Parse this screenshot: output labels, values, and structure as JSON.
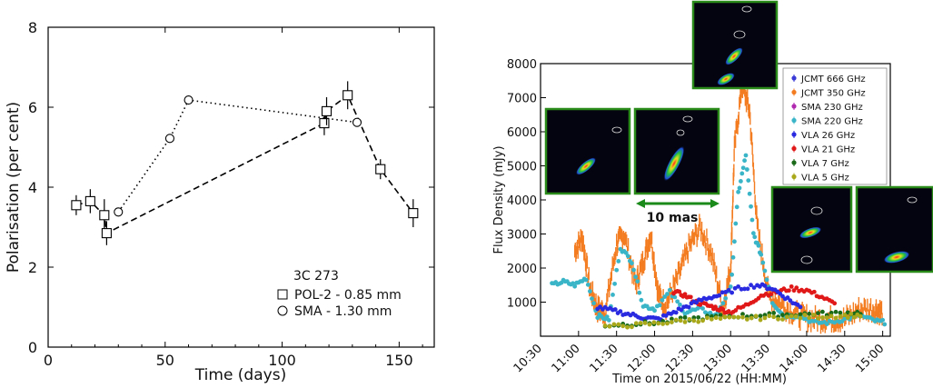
{
  "chart_data": [
    {
      "type": "scatter",
      "xlabel": "Time (days)",
      "ylabel": "Polarisation (per cent)",
      "xlim": [
        0,
        165
      ],
      "ylim": [
        0,
        8
      ],
      "x_ticks": [
        "0",
        "50",
        "100",
        "150"
      ],
      "y_ticks": [
        "0",
        "2",
        "4",
        "6",
        "8"
      ],
      "legend": {
        "title": "3C 273",
        "placement": "bottom-right",
        "entries": [
          "POL-2 - 0.85 mm",
          "SMA  - 1.30 mm"
        ]
      },
      "series": [
        {
          "name": "POL-2 - 0.85 mm",
          "marker": "square",
          "line": "dashed",
          "points": [
            {
              "x": 12,
              "y": 3.55,
              "err": 0.25
            },
            {
              "x": 18,
              "y": 3.65,
              "err": 0.3
            },
            {
              "x": 24,
              "y": 3.3,
              "err": 0.4
            },
            {
              "x": 25,
              "y": 2.85,
              "err": 0.3
            },
            {
              "x": 118,
              "y": 5.6,
              "err": 0.3
            },
            {
              "x": 119,
              "y": 5.9,
              "err": 0.35
            },
            {
              "x": 128,
              "y": 6.3,
              "err": 0.35
            },
            {
              "x": 142,
              "y": 4.45,
              "err": 0.25
            },
            {
              "x": 156,
              "y": 3.35,
              "err": 0.35
            }
          ]
        },
        {
          "name": "SMA  - 1.30 mm",
          "marker": "circle",
          "line": "dotted",
          "points": [
            {
              "x": 30,
              "y": 3.38
            },
            {
              "x": 52,
              "y": 5.22
            },
            {
              "x": 60,
              "y": 6.18
            },
            {
              "x": 132,
              "y": 5.62
            }
          ]
        }
      ]
    },
    {
      "type": "scatter",
      "xlabel": "Time on 2015/06/22 (HH:MM)",
      "ylabel": "Flux Density (mJy)",
      "ylim": [
        0,
        8000
      ],
      "y_ticks": [
        "1000",
        "2000",
        "3000",
        "4000",
        "5000",
        "6000",
        "7000",
        "8000"
      ],
      "x_ticks": [
        "10:30",
        "11:00",
        "11:30",
        "12:00",
        "12:30",
        "13:00",
        "13:30",
        "14:00",
        "14:30",
        "15:00"
      ],
      "scale_bar": "10 mas",
      "legend": {
        "placement": "top-right",
        "entries": [
          {
            "name": "JCMT 666 GHz",
            "color": "#3a3ad6"
          },
          {
            "name": "JCMT 350 GHz",
            "color": "#f47c20"
          },
          {
            "name": "SMA 230 GHz",
            "color": "#b02ab0"
          },
          {
            "name": "SMA 220 GHz",
            "color": "#3ab5c8"
          },
          {
            "name": "VLA 26 GHz",
            "color": "#2a2ae0"
          },
          {
            "name": "VLA 21 GHz",
            "color": "#e01818"
          },
          {
            "name": "VLA 7 GHz",
            "color": "#1a6a1a"
          },
          {
            "name": "VLA 5 GHz",
            "color": "#a8a81a"
          }
        ]
      },
      "series": [
        {
          "name": "JCMT 350 GHz",
          "color": "#f47c20",
          "x": [
            10.95,
            11.05,
            11.15,
            11.25,
            11.35,
            11.5,
            11.6,
            11.75,
            11.85,
            11.95,
            12.05,
            12.15,
            12.3,
            12.45,
            12.6,
            12.75,
            12.9,
            13.0,
            13.05,
            13.15,
            13.25,
            13.35,
            13.5,
            13.7,
            13.9,
            14.1,
            14.3,
            14.5,
            14.7,
            14.9,
            15.0
          ],
          "y": [
            2500,
            2900,
            1400,
            800,
            700,
            2700,
            3000,
            1500,
            2200,
            3000,
            1200,
            900,
            1700,
            2600,
            3200,
            2400,
            800,
            2000,
            5500,
            7400,
            6600,
            3200,
            1200,
            900,
            600,
            500,
            500,
            500,
            800,
            800,
            700
          ]
        },
        {
          "name": "SMA 220 GHz",
          "color": "#3ab5c8",
          "x": [
            10.65,
            10.8,
            10.95,
            11.1,
            11.25,
            11.4,
            11.55,
            11.7,
            11.85,
            12.0,
            12.2,
            12.4,
            12.6,
            12.8,
            13.0,
            13.1,
            13.2,
            13.3,
            13.4,
            13.55,
            13.7,
            13.9,
            14.1,
            14.3,
            14.5,
            14.7,
            14.9,
            15.05
          ],
          "y": [
            1500,
            1600,
            1500,
            1700,
            600,
            500,
            2600,
            2200,
            900,
            800,
            1300,
            700,
            800,
            600,
            1400,
            4200,
            5300,
            3000,
            2400,
            1000,
            600,
            600,
            400,
            400,
            500,
            600,
            450,
            400
          ]
        },
        {
          "name": "VLA 21 GHz",
          "color": "#e01818",
          "x": [
            12.25,
            12.4,
            12.55,
            12.7,
            12.85,
            13.0,
            13.2,
            13.4,
            13.6,
            13.8,
            14.0,
            14.2,
            14.4
          ],
          "y": [
            1300,
            1200,
            1000,
            900,
            800,
            700,
            900,
            1200,
            1300,
            1400,
            1350,
            1150,
            900
          ]
        },
        {
          "name": "VLA 26 GHz",
          "color": "#2a2ae0",
          "x": [
            11.25,
            11.45,
            11.65,
            11.85,
            12.05,
            12.25,
            12.45,
            12.65,
            12.85,
            13.1,
            13.35,
            13.55,
            13.75,
            13.95
          ],
          "y": [
            850,
            750,
            650,
            550,
            500,
            700,
            900,
            1100,
            1200,
            1400,
            1500,
            1400,
            1100,
            800
          ]
        },
        {
          "name": "VLA 7 GHz",
          "color": "#1a6a1a",
          "x": [
            11.35,
            11.7,
            12.05,
            12.4,
            12.75,
            13.1,
            13.45,
            13.8,
            14.15,
            14.5,
            14.75
          ],
          "y": [
            320,
            360,
            400,
            500,
            560,
            600,
            620,
            640,
            660,
            680,
            700
          ]
        },
        {
          "name": "VLA 5 GHz",
          "color": "#a8a81a",
          "x": [
            11.35,
            11.7,
            12.05,
            12.4,
            12.75,
            13.1,
            13.45,
            13.8,
            14.15,
            14.5,
            14.75
          ],
          "y": [
            280,
            320,
            380,
            460,
            500,
            520,
            540,
            560,
            580,
            600,
            620
          ]
        }
      ]
    }
  ]
}
